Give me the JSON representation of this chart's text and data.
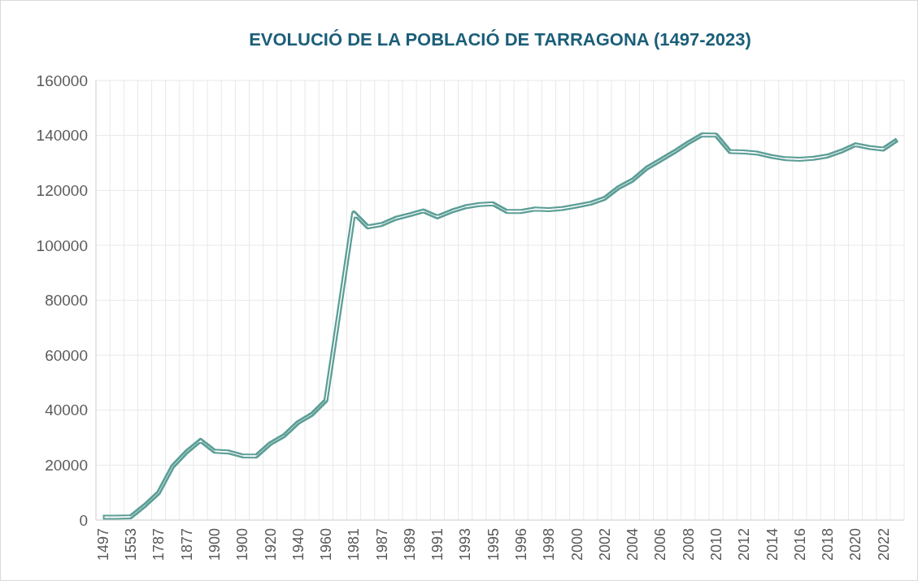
{
  "chart_data": {
    "type": "line",
    "title": "EVOLUCIÓ DE LA POBLACIÓ DE TARRAGONA (1497-2023)",
    "categories": [
      "1497",
      null,
      "1553",
      null,
      "1787",
      null,
      "1877",
      null,
      "1900",
      null,
      "1900",
      null,
      "1920",
      null,
      "1940",
      null,
      "1960",
      null,
      "1981",
      null,
      "1987",
      null,
      "1989",
      null,
      "1991",
      null,
      "1993",
      null,
      "1995",
      null,
      "1996",
      null,
      "1998",
      null,
      "2000",
      null,
      "2002",
      null,
      "2004",
      null,
      "2006",
      null,
      "2008",
      null,
      "2010",
      null,
      "2012",
      null,
      "2014",
      null,
      "2016",
      null,
      "2018",
      null,
      "2020",
      null,
      "2022",
      null
    ],
    "series": [
      {
        "color": "#5b9e96",
        "values": [
          1000,
          1000,
          1200,
          5300,
          10000,
          19500,
          24800,
          29000,
          25100,
          24800,
          23400,
          23300,
          27800,
          30700,
          35500,
          38500,
          43500,
          77500,
          111800,
          106700,
          107600,
          109800,
          111100,
          112500,
          110300,
          112400,
          114000,
          114800,
          115100,
          112300,
          112300,
          113200,
          113000,
          113400,
          114300,
          115300,
          117100,
          121000,
          123700,
          128000,
          131000,
          134000,
          137300,
          140200,
          140100,
          134100,
          134000,
          133500,
          132300,
          131500,
          131300,
          131700,
          132500,
          134300,
          136600,
          135600,
          135000,
          138400
        ]
      }
    ],
    "ylim": [
      0,
      160000
    ],
    "yticks": [
      0,
      20000,
      40000,
      60000,
      80000,
      100000,
      120000,
      140000,
      160000
    ],
    "grid": true,
    "marker": "none",
    "line_style": "solid"
  }
}
